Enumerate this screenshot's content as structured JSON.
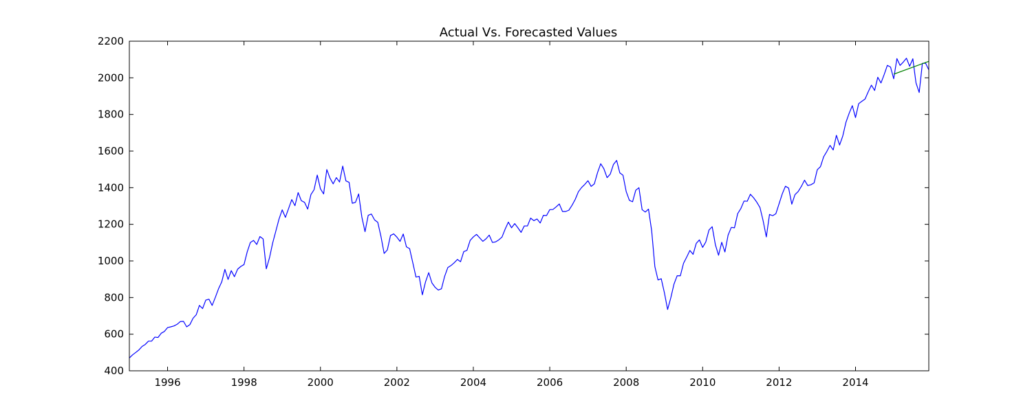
{
  "chart_data": {
    "type": "line",
    "title": "Actual Vs. Forecasted Values",
    "xlabel": "",
    "ylabel": "",
    "xlim": [
      1995.0,
      2015.917
    ],
    "ylim": [
      400,
      2200
    ],
    "x_ticks": [
      1996,
      1998,
      2000,
      2002,
      2004,
      2006,
      2008,
      2010,
      2012,
      2014
    ],
    "y_ticks": [
      400,
      600,
      800,
      1000,
      1200,
      1400,
      1600,
      1800,
      2000,
      2200
    ],
    "grid": false,
    "legend": "none",
    "series": [
      {
        "color": "#0000ff",
        "x_start": 1995.0,
        "x_step": 0.08333,
        "values": [
          470,
          487,
          500,
          514,
          533,
          544,
          562,
          562,
          584,
          582,
          605,
          615,
          636,
          640,
          645,
          654,
          669,
          670,
          640,
          652,
          687,
          706,
          757,
          740,
          786,
          791,
          757,
          801,
          848,
          885,
          954,
          899,
          947,
          914,
          955,
          970,
          980,
          1049,
          1101,
          1112,
          1090,
          1133,
          1120,
          957,
          1017,
          1098,
          1163,
          1229,
          1279,
          1238,
          1286,
          1335,
          1302,
          1373,
          1329,
          1320,
          1283,
          1362,
          1389,
          1469,
          1394,
          1366,
          1499,
          1452,
          1421,
          1455,
          1431,
          1518,
          1437,
          1429,
          1315,
          1320,
          1366,
          1240,
          1160,
          1249,
          1256,
          1224,
          1211,
          1134,
          1041,
          1060,
          1139,
          1148,
          1130,
          1107,
          1147,
          1077,
          1067,
          990,
          912,
          916,
          815,
          886,
          936,
          880,
          856,
          841,
          848,
          916,
          964,
          975,
          990,
          1008,
          996,
          1051,
          1058,
          1112,
          1131,
          1145,
          1126,
          1107,
          1121,
          1141,
          1101,
          1104,
          1115,
          1130,
          1174,
          1212,
          1181,
          1204,
          1181,
          1156,
          1191,
          1191,
          1234,
          1220,
          1229,
          1207,
          1249,
          1248,
          1280,
          1281,
          1295,
          1311,
          1270,
          1270,
          1277,
          1304,
          1336,
          1378,
          1401,
          1418,
          1438,
          1407,
          1421,
          1482,
          1531,
          1503,
          1455,
          1474,
          1527,
          1549,
          1481,
          1468,
          1379,
          1331,
          1323,
          1386,
          1400,
          1280,
          1267,
          1283,
          1165,
          969,
          896,
          903,
          826,
          735,
          798,
          873,
          919,
          919,
          987,
          1021,
          1057,
          1036,
          1096,
          1115,
          1074,
          1104,
          1169,
          1187,
          1089,
          1031,
          1102,
          1049,
          1141,
          1183,
          1181,
          1258,
          1286,
          1327,
          1326,
          1364,
          1345,
          1321,
          1292,
          1219,
          1131,
          1254,
          1247,
          1258,
          1312,
          1366,
          1408,
          1398,
          1310,
          1362,
          1379,
          1407,
          1441,
          1412,
          1416,
          1426,
          1498,
          1515,
          1569,
          1598,
          1631,
          1606,
          1686,
          1633,
          1682,
          1757,
          1806,
          1848,
          1783,
          1859,
          1872,
          1884,
          1924,
          1960,
          1931,
          2003,
          1972,
          2018,
          2068,
          2059,
          1995,
          2105,
          2068,
          2086,
          2107,
          2063,
          2104,
          1972,
          1920,
          2079,
          2080,
          2044
        ]
      },
      {
        "color": "#008000",
        "x": [
          2015.0,
          2015.917
        ],
        "values": [
          2020,
          2090
        ]
      }
    ]
  }
}
